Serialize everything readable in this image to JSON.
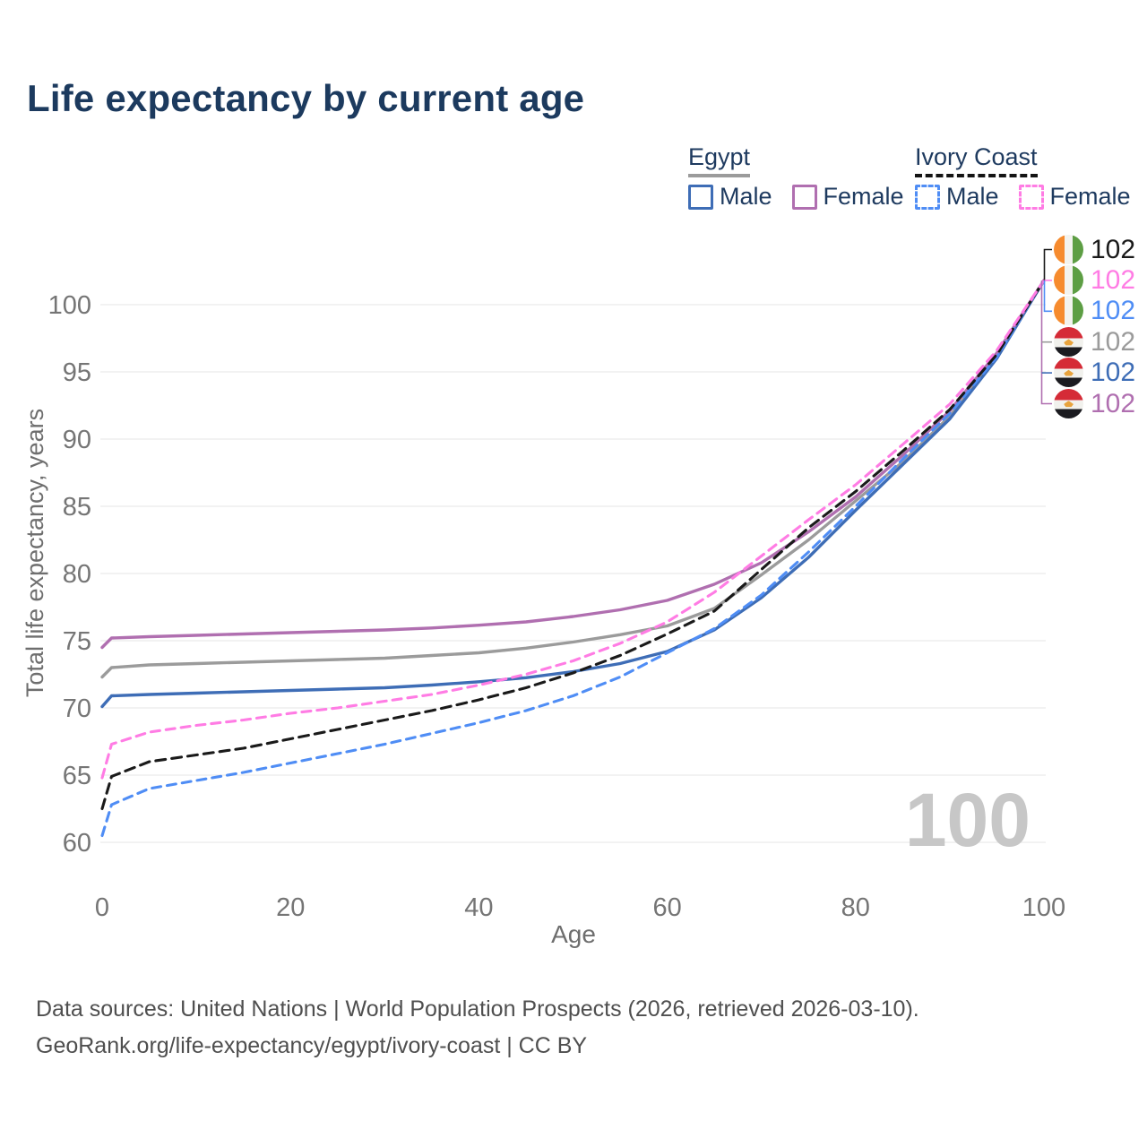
{
  "title": "Life expectancy by current age",
  "legend": {
    "groups": [
      {
        "label": "Egypt",
        "line_style": "solid",
        "line_color": "#9b9b9b",
        "items": [
          {
            "label": "Male",
            "color": "#3e6db6"
          },
          {
            "label": "Female",
            "color": "#b06fb0"
          }
        ]
      },
      {
        "label": "Ivory Coast",
        "line_style": "dashed",
        "line_color": "#141414",
        "items": [
          {
            "label": "Male",
            "color": "#4f8df5"
          },
          {
            "label": "Female",
            "color": "#ff7ce4"
          }
        ]
      }
    ]
  },
  "watermark": "100",
  "footer": {
    "line1": "Data sources: United Nations | World Population Prospects (2026, retrieved 2026-03-10).",
    "line2": "GeoRank.org/life-expectancy/egypt/ivory-coast | CC BY"
  },
  "chart_data": {
    "type": "line",
    "title": "Life expectancy by current age",
    "xlabel": "Age",
    "ylabel": "Total life expectancy, years",
    "xlim": [
      0,
      100
    ],
    "ylim": [
      57,
      105
    ],
    "x_ticks": [
      0,
      20,
      40,
      60,
      80,
      100
    ],
    "y_ticks": [
      60,
      65,
      70,
      75,
      80,
      85,
      90,
      95,
      100
    ],
    "grid": "horizontal",
    "legend_position": "top-right",
    "x": [
      0,
      1,
      5,
      10,
      15,
      20,
      25,
      30,
      35,
      40,
      45,
      50,
      55,
      60,
      65,
      70,
      75,
      80,
      85,
      90,
      95,
      100
    ],
    "series": [
      {
        "name": "Ivory Coast — Total",
        "country": "ivory-coast",
        "sex": "all",
        "color": "#1a1a1a",
        "dash": "11 7",
        "end_label": "102",
        "values": [
          62.5,
          64.9,
          66.0,
          66.5,
          67.0,
          67.7,
          68.4,
          69.1,
          69.8,
          70.6,
          71.5,
          72.6,
          73.9,
          75.5,
          77.2,
          80.3,
          83.4,
          86.1,
          89.1,
          92.2,
          96.3,
          101.8
        ]
      },
      {
        "name": "Ivory Coast — Female",
        "country": "ivory-coast",
        "sex": "female",
        "color": "#ff7ce4",
        "dash": "10 7",
        "end_label": "102",
        "values": [
          64.8,
          67.3,
          68.2,
          68.7,
          69.1,
          69.6,
          70.0,
          70.5,
          71.0,
          71.7,
          72.5,
          73.5,
          74.8,
          76.4,
          78.6,
          81.3,
          84.0,
          86.6,
          89.6,
          92.6,
          96.6,
          101.8
        ]
      },
      {
        "name": "Ivory Coast — Male",
        "country": "ivory-coast",
        "sex": "male",
        "color": "#4f8df5",
        "dash": "10 7",
        "end_label": "102",
        "values": [
          60.5,
          62.8,
          64.0,
          64.6,
          65.2,
          65.9,
          66.6,
          67.3,
          68.1,
          68.9,
          69.8,
          70.9,
          72.3,
          74.1,
          75.9,
          78.4,
          81.6,
          85.0,
          88.5,
          91.9,
          96.1,
          101.8
        ]
      },
      {
        "name": "Egypt — Total",
        "country": "egypt",
        "sex": "all",
        "color": "#9b9b9b",
        "dash": "",
        "end_label": "102",
        "values": [
          72.3,
          73.0,
          73.2,
          73.3,
          73.4,
          73.5,
          73.6,
          73.7,
          73.9,
          74.1,
          74.45,
          74.9,
          75.45,
          76.1,
          77.4,
          79.9,
          82.5,
          85.4,
          88.3,
          91.7,
          96.1,
          101.8
        ]
      },
      {
        "name": "Egypt — Male",
        "country": "egypt",
        "sex": "male",
        "color": "#3e6db6",
        "dash": "",
        "end_label": "102",
        "values": [
          70.1,
          70.9,
          71.0,
          71.1,
          71.2,
          71.3,
          71.4,
          71.5,
          71.7,
          71.95,
          72.25,
          72.7,
          73.3,
          74.2,
          75.8,
          78.2,
          81.2,
          84.7,
          88.1,
          91.5,
          96.0,
          101.8
        ]
      },
      {
        "name": "Egypt — Female",
        "country": "egypt",
        "sex": "female",
        "color": "#b06fb0",
        "dash": "",
        "end_label": "102",
        "values": [
          74.5,
          75.2,
          75.3,
          75.4,
          75.5,
          75.6,
          75.7,
          75.8,
          75.95,
          76.15,
          76.4,
          76.8,
          77.3,
          78.0,
          79.2,
          80.8,
          83.1,
          85.7,
          88.8,
          92.1,
          96.4,
          101.8
        ]
      }
    ]
  }
}
